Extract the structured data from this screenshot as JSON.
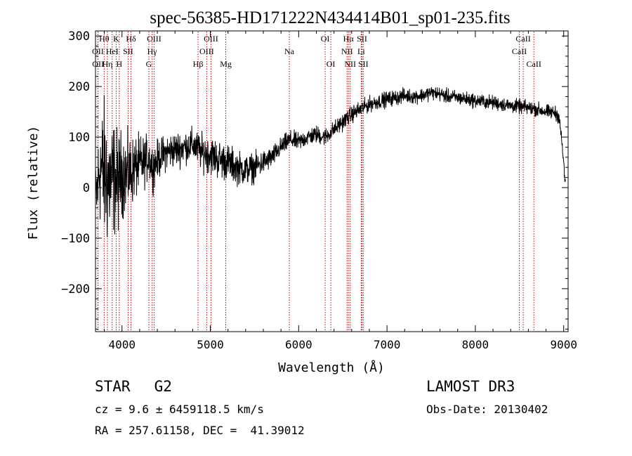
{
  "chart_data": {
    "type": "line",
    "title": "spec-56385-HD171222N434414B01_sp01-235.fits",
    "xlabel": "Wavelength (Å)",
    "ylabel": "Flux (relative)",
    "xlim": [
      3700,
      9050
    ],
    "ylim": [
      -285,
      310
    ],
    "xticks": [
      4000,
      5000,
      6000,
      7000,
      8000,
      9000
    ],
    "xtick_labels": [
      "4000",
      "5000",
      "6000",
      "7000",
      "8000",
      "9000"
    ],
    "yticks": [
      -200,
      -100,
      0,
      100,
      200,
      300
    ],
    "ytick_labels": [
      "−200",
      "−100",
      "0",
      "100",
      "200",
      "300"
    ],
    "series": [
      {
        "name": "flux",
        "x": [
          3700,
          3750,
          3800,
          3850,
          3900,
          3950,
          4000,
          4050,
          4100,
          4150,
          4200,
          4250,
          4300,
          4350,
          4400,
          4500,
          4600,
          4700,
          4800,
          4900,
          5000,
          5100,
          5200,
          5300,
          5400,
          5500,
          5600,
          5700,
          5800,
          5900,
          6000,
          6100,
          6200,
          6300,
          6400,
          6500,
          6600,
          6700,
          6800,
          6900,
          7000,
          7100,
          7200,
          7300,
          7400,
          7500,
          7600,
          7700,
          7800,
          7900,
          8000,
          8100,
          8200,
          8300,
          8400,
          8500,
          8600,
          8700,
          8800,
          8900,
          8950,
          9000,
          9020
        ],
        "y": [
          -30,
          40,
          30,
          10,
          20,
          10,
          30,
          25,
          30,
          40,
          45,
          50,
          60,
          40,
          55,
          70,
          75,
          80,
          85,
          70,
          65,
          55,
          50,
          40,
          35,
          40,
          50,
          60,
          80,
          95,
          90,
          100,
          105,
          100,
          115,
          130,
          145,
          155,
          165,
          170,
          175,
          178,
          182,
          180,
          183,
          188,
          185,
          180,
          178,
          175,
          172,
          170,
          168,
          165,
          162,
          160,
          158,
          155,
          150,
          148,
          140,
          50,
          0
        ],
        "noise": [
          60,
          95,
          120,
          110,
          95,
          85,
          70,
          65,
          58,
          52,
          48,
          42,
          38,
          36,
          32,
          30,
          30,
          28,
          28,
          30,
          32,
          32,
          30,
          28,
          26,
          24,
          20,
          18,
          16,
          16,
          15,
          15,
          15,
          15,
          14,
          14,
          14,
          14,
          13,
          13,
          13,
          13,
          12,
          12,
          12,
          12,
          12,
          12,
          12,
          12,
          12,
          12,
          12,
          12,
          12,
          12,
          12,
          12,
          12,
          12,
          12,
          12,
          12
        ]
      }
    ],
    "line_markers": [
      {
        "label": "Hθ",
        "wavelength": 3798,
        "row": 0
      },
      {
        "label": "OII",
        "wavelength": 3727,
        "row": 1
      },
      {
        "label": "OII",
        "wavelength": 3729,
        "row": 2
      },
      {
        "label": "Hη",
        "wavelength": 3835,
        "row": 2
      },
      {
        "label": "HeI",
        "wavelength": 3889,
        "row": 1
      },
      {
        "label": "K",
        "wavelength": 3934,
        "row": 0
      },
      {
        "label": "H",
        "wavelength": 3969,
        "row": 2
      },
      {
        "label": "SII",
        "wavelength": 4069,
        "row": 1
      },
      {
        "label": "Hδ",
        "wavelength": 4102,
        "row": 0
      },
      {
        "label": "G",
        "wavelength": 4304,
        "row": 2
      },
      {
        "label": "OIII",
        "wavelength": 4363,
        "row": 0
      },
      {
        "label": "Hγ",
        "wavelength": 4341,
        "row": 1
      },
      {
        "label": "Hβ",
        "wavelength": 4861,
        "row": 2
      },
      {
        "label": "OIII",
        "wavelength": 4959,
        "row": 1
      },
      {
        "label": "OIII",
        "wavelength": 5007,
        "row": 0
      },
      {
        "label": "Mg",
        "wavelength": 5175,
        "row": 2
      },
      {
        "label": "Na",
        "wavelength": 5894,
        "row": 1
      },
      {
        "label": "OI",
        "wavelength": 6300,
        "row": 0
      },
      {
        "label": "OI",
        "wavelength": 6364,
        "row": 2
      },
      {
        "label": "Hα",
        "wavelength": 6563,
        "row": 0
      },
      {
        "label": "NII",
        "wavelength": 6548,
        "row": 1
      },
      {
        "label": "NII",
        "wavelength": 6583,
        "row": 2
      },
      {
        "label": "SII",
        "wavelength": 6717,
        "row": 0
      },
      {
        "label": "Li",
        "wavelength": 6708,
        "row": 1
      },
      {
        "label": "SII",
        "wavelength": 6731,
        "row": 2
      },
      {
        "label": "CaII",
        "wavelength": 8498,
        "row": 1
      },
      {
        "label": "CaII",
        "wavelength": 8542,
        "row": 0
      },
      {
        "label": "CaII",
        "wavelength": 8662,
        "row": 2
      }
    ]
  },
  "info": {
    "class_label": "STAR",
    "subclass": "G2",
    "survey": "LAMOST DR3",
    "cz_line": "cz = 9.6 ± 6459118.5 km/s",
    "obs_date_line": "Obs-Date: 20130402",
    "coords_line": "RA = 257.61158, DEC =  41.39012"
  },
  "colors": {
    "line": "#000000",
    "marker": "#cc0000",
    "axis": "#000000"
  }
}
